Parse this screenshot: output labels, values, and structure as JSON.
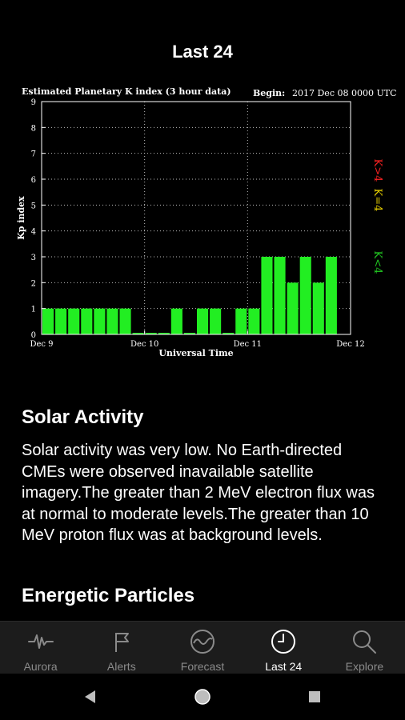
{
  "page": {
    "title": "Last 24"
  },
  "chart_data": {
    "type": "bar",
    "title": "Estimated Planetary K index (3 hour data)",
    "begin_label": "Begin:",
    "begin_value": "2017 Dec 08 0000 UTC",
    "xlabel": "Universal Time",
    "ylabel": "Kp index",
    "ylim": [
      0,
      9
    ],
    "yticks": [
      "0",
      "1",
      "2",
      "3",
      "4",
      "5",
      "6",
      "7",
      "8",
      "9"
    ],
    "xticks": [
      "Dec 9",
      "Dec 10",
      "Dec 11",
      "Dec 12"
    ],
    "values": [
      1,
      1,
      1,
      1,
      1,
      1,
      1,
      0,
      0,
      0,
      1,
      0,
      1,
      1,
      0,
      1,
      1,
      3,
      3,
      2,
      3,
      2,
      3
    ],
    "grid": "dotted",
    "legend": [
      {
        "label": "K<4",
        "color": "#22cc22"
      },
      {
        "label": "K=4",
        "color": "#e8d000"
      },
      {
        "label": "K>4",
        "color": "#ff2222"
      }
    ],
    "bar_color": "#22ee22"
  },
  "solar": {
    "heading": "Solar Activity",
    "body": "Solar activity was very low. No Earth-directed CMEs were observed inavailable satellite imagery.The greater than 2 MeV electron flux was at normal to moderate levels.The greater than 10 MeV proton flux was at background levels."
  },
  "energetic": {
    "heading": "Energetic Particles"
  },
  "nav": {
    "items": [
      {
        "label": "Aurora",
        "icon": "aurora-icon"
      },
      {
        "label": "Alerts",
        "icon": "flag-icon"
      },
      {
        "label": "Forecast",
        "icon": "forecast-icon"
      },
      {
        "label": "Last 24",
        "icon": "clock-icon",
        "active": true
      },
      {
        "label": "Explore",
        "icon": "search-icon"
      }
    ]
  },
  "system_nav": {
    "back": "back-icon",
    "home": "home-icon",
    "recents": "recents-icon"
  }
}
